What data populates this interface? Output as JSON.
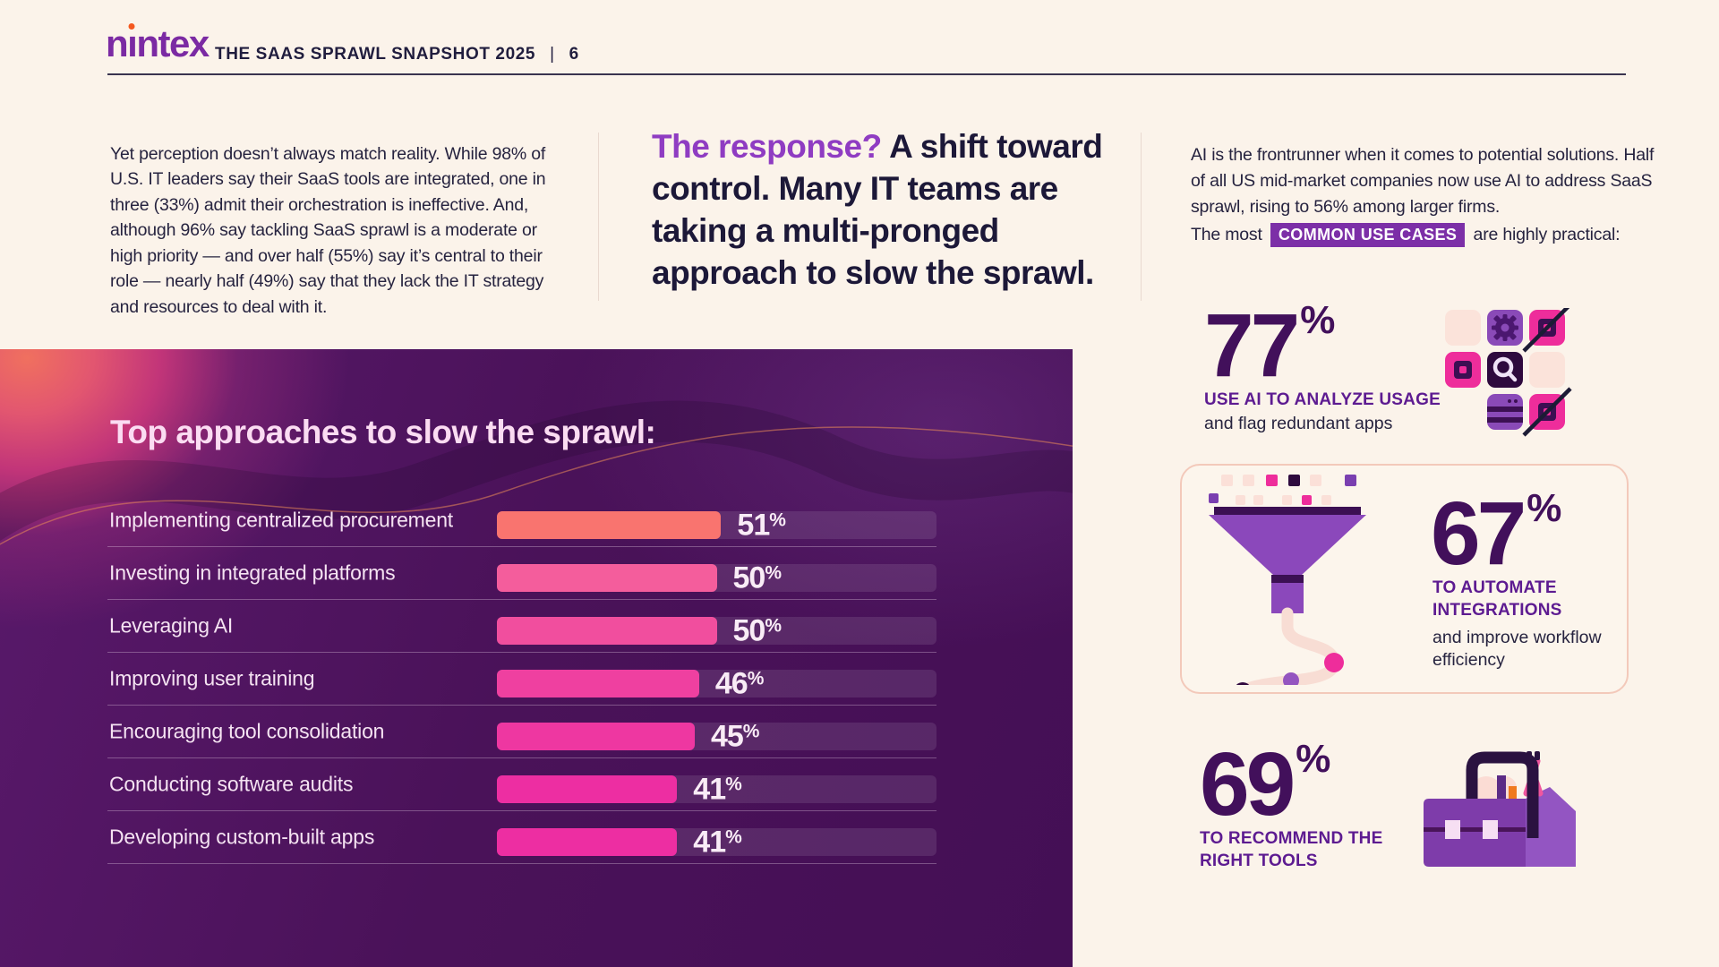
{
  "header": {
    "logo_parts": {
      "pre": "n",
      "i": "ı",
      "post": "ntex"
    },
    "logo_text": "nintex",
    "title": "THE SAAS SPRAWL SNAPSHOT 2025",
    "separator": "|",
    "page_number": "6"
  },
  "intro": {
    "paragraph": "Yet perception doesn’t always match reality. While 98% of U.S. IT leaders say their SaaS tools are integrated, one in three (33%) admit their orchestration is ineffective. And, although 96% say tackling SaaS sprawl is a moderate or high priority — and over half (55%) say it’s central to their role — nearly half (49%) say that they lack the IT strategy and resources to deal with it."
  },
  "headline": {
    "accent": "The response?",
    "line1_rest": " A shift toward",
    "line2": "control. Many IT teams are",
    "line3": "taking a multi-pronged",
    "line4": "approach to slow the sprawl."
  },
  "right_column": {
    "paragraph": "AI is the frontrunner when it comes to potential solutions. Half of all US mid-market companies now use AI to address SaaS sprawl, rising to 56% among larger firms.",
    "use_cases": {
      "prefix": "The most",
      "badge": "COMMON USE CASES",
      "suffix": "are highly practical:"
    },
    "stats": [
      {
        "value": "77",
        "unit": "%",
        "label": "USE AI TO ANALYZE USAGE",
        "sublabel": "and flag redundant apps",
        "icon": "app-grid-icon"
      },
      {
        "value": "67",
        "unit": "%",
        "label": "TO AUTOMATE INTEGRATIONS",
        "sublabel": "and improve workflow efficiency",
        "icon": "funnel-icon"
      },
      {
        "value": "69",
        "unit": "%",
        "label": "TO RECOMMEND THE RIGHT TOOLS",
        "sublabel": "",
        "icon": "toolbox-icon"
      }
    ]
  },
  "chart_data": {
    "type": "bar",
    "orientation": "horizontal",
    "title": "Top approaches to slow the sprawl:",
    "categories": [
      "Implementing centralized procurement",
      "Investing in integrated platforms",
      "Leveraging AI",
      "Improving user training",
      "Encouraging tool consolidation",
      "Conducting software audits",
      "Developing custom-built apps"
    ],
    "values": [
      51,
      50,
      50,
      46,
      45,
      41,
      41
    ],
    "unit": "%",
    "xlim": [
      0,
      100
    ],
    "grid": false,
    "value_labels": "beside-bar",
    "bar_colors": [
      "#f9746f",
      "#f45d9c",
      "#f14e9e",
      "#ef40a0",
      "#ee37a1",
      "#ed2ea2",
      "#ed2ea2"
    ]
  },
  "colors": {
    "page_background": "#fbf3ea",
    "brand_purple": "#7b2aa3",
    "logo_dot_orange": "#f4581f",
    "headline_accent": "#8f3cc2",
    "badge_background": "#7c2fa7",
    "stat_number": "#42105b",
    "stat_label": "#5d1b91",
    "dark_text": "#26233f",
    "panel_dark_purple": "#471159",
    "panel_glow_coral": "#f0705f",
    "panel_glow_magenta": "#c23579",
    "chart_title_pink": "#fbdcf2",
    "card_border": "#f3c9ba"
  }
}
